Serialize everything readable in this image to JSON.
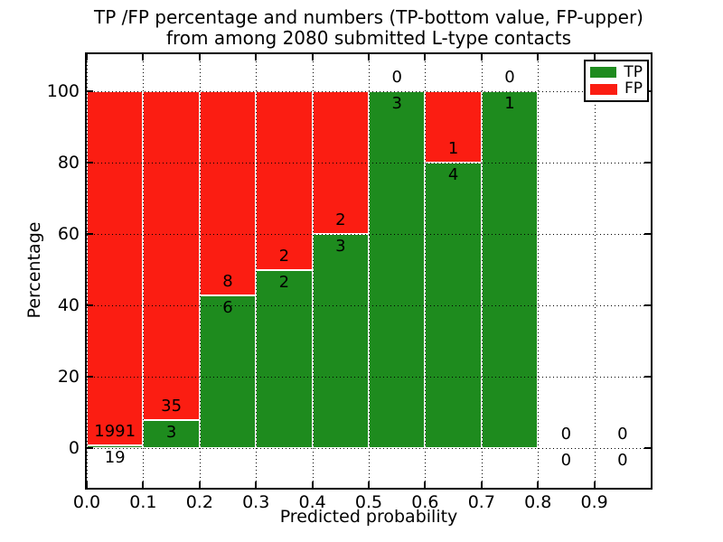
{
  "figure": {
    "title_line1": "TP /FP percentage and numbers (TP-bottom value, FP-upper)",
    "title_line2": "from among 2080 submitted L-type contacts",
    "xlabel": "Predicted probability",
    "ylabel": "Percentage"
  },
  "legend": {
    "entries": [
      {
        "label": "TP",
        "color": "#1e8b1e"
      },
      {
        "label": "FP",
        "color": "#fb1d12"
      }
    ],
    "position": "upper right"
  },
  "colors": {
    "tp": "#1e8b1e",
    "fp": "#fb1d12",
    "frame": "#000000",
    "grid": "#000000",
    "bar_edge": "#ffffff",
    "background": "#ffffff",
    "text": "#000000"
  },
  "chart_data": {
    "type": "bar",
    "stacked": true,
    "title": "TP /FP percentage and numbers (TP-bottom value, FP-upper) from among 2080 submitted L-type contacts",
    "xlabel": "Predicted probability",
    "ylabel": "Percentage",
    "xlim": [
      0.0,
      1.0
    ],
    "ylim": [
      -11.0,
      110.3
    ],
    "xticks": [
      "0.0",
      "0.1",
      "0.2",
      "0.3",
      "0.4",
      "0.5",
      "0.6",
      "0.7",
      "0.8",
      "0.9"
    ],
    "yticks": [
      "0",
      "20",
      "40",
      "60",
      "80",
      "100"
    ],
    "grid": true,
    "grid_style": "dotted",
    "legend_position": "upper right",
    "series": [
      {
        "name": "TP",
        "color": "#1e8b1e",
        "role": "bottom segment, count label below boundary"
      },
      {
        "name": "FP",
        "color": "#fb1d12",
        "role": "upper segment, count label above boundary"
      }
    ],
    "bins": [
      {
        "range": [
          0.0,
          0.1
        ],
        "tp": 19,
        "fp": 1991,
        "tp_pct": 0.95,
        "fp_pct": 99.05
      },
      {
        "range": [
          0.1,
          0.2
        ],
        "tp": 3,
        "fp": 35,
        "tp_pct": 7.89,
        "fp_pct": 92.11
      },
      {
        "range": [
          0.2,
          0.3
        ],
        "tp": 6,
        "fp": 8,
        "tp_pct": 42.86,
        "fp_pct": 57.14
      },
      {
        "range": [
          0.3,
          0.4
        ],
        "tp": 2,
        "fp": 2,
        "tp_pct": 50.0,
        "fp_pct": 50.0
      },
      {
        "range": [
          0.4,
          0.5
        ],
        "tp": 3,
        "fp": 2,
        "tp_pct": 60.0,
        "fp_pct": 40.0
      },
      {
        "range": [
          0.5,
          0.6
        ],
        "tp": 3,
        "fp": 0,
        "tp_pct": 100.0,
        "fp_pct": 0.0
      },
      {
        "range": [
          0.6,
          0.7
        ],
        "tp": 4,
        "fp": 1,
        "tp_pct": 80.0,
        "fp_pct": 20.0
      },
      {
        "range": [
          0.7,
          0.8
        ],
        "tp": 1,
        "fp": 0,
        "tp_pct": 100.0,
        "fp_pct": 0.0
      },
      {
        "range": [
          0.8,
          0.9
        ],
        "tp": 0,
        "fp": 0,
        "tp_pct": 0.0,
        "fp_pct": 0.0
      },
      {
        "range": [
          0.9,
          1.0
        ],
        "tp": 0,
        "fp": 0,
        "tp_pct": 0.0,
        "fp_pct": 0.0
      }
    ]
  }
}
